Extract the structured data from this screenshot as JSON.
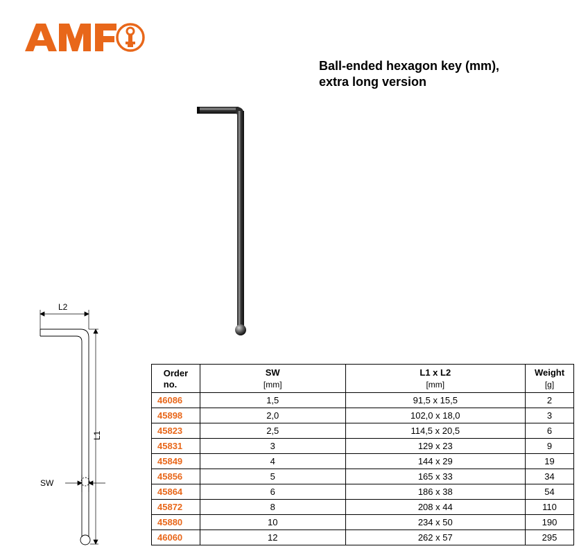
{
  "brand": {
    "name": "AMF",
    "logo_color": "#e8671a",
    "logo_fontsize": 40
  },
  "title_line1": "Ball-ended hexagon key (mm),",
  "title_line2": "extra long version",
  "drawing": {
    "label_L2": "L2",
    "label_L1": "L1",
    "label_SW": "SW",
    "line_color": "#000000",
    "line_width": 0.9
  },
  "photo": {
    "shaft_color": "#2b2b2b",
    "highlight_color": "#8a8a8a",
    "ball_color": "#6a6a6a"
  },
  "table": {
    "columns": [
      {
        "key": "order",
        "label": "Order\nno.",
        "unit": ""
      },
      {
        "key": "sw",
        "label": "SW",
        "unit": "[mm]"
      },
      {
        "key": "l1l2",
        "label": "L1 x L2",
        "unit": "[mm]"
      },
      {
        "key": "weight",
        "label": "Weight",
        "unit": "[g]"
      }
    ],
    "order_color": "#e8671a",
    "rows": [
      {
        "order": "46086",
        "sw": "1,5",
        "l1l2": "91,5 x 15,5",
        "weight": "2"
      },
      {
        "order": "45898",
        "sw": "2,0",
        "l1l2": "102,0 x 18,0",
        "weight": "3"
      },
      {
        "order": "45823",
        "sw": "2,5",
        "l1l2": "114,5 x 20,5",
        "weight": "6"
      },
      {
        "order": "45831",
        "sw": "3",
        "l1l2": "129 x 23",
        "weight": "9"
      },
      {
        "order": "45849",
        "sw": "4",
        "l1l2": "144 x 29",
        "weight": "19"
      },
      {
        "order": "45856",
        "sw": "5",
        "l1l2": "165 x 33",
        "weight": "34"
      },
      {
        "order": "45864",
        "sw": "6",
        "l1l2": "186 x 38",
        "weight": "54"
      },
      {
        "order": "45872",
        "sw": "8",
        "l1l2": "208 x 44",
        "weight": "110"
      },
      {
        "order": "45880",
        "sw": "10",
        "l1l2": "234 x 50",
        "weight": "190"
      },
      {
        "order": "46060",
        "sw": "12",
        "l1l2": "262 x 57",
        "weight": "295"
      }
    ]
  }
}
